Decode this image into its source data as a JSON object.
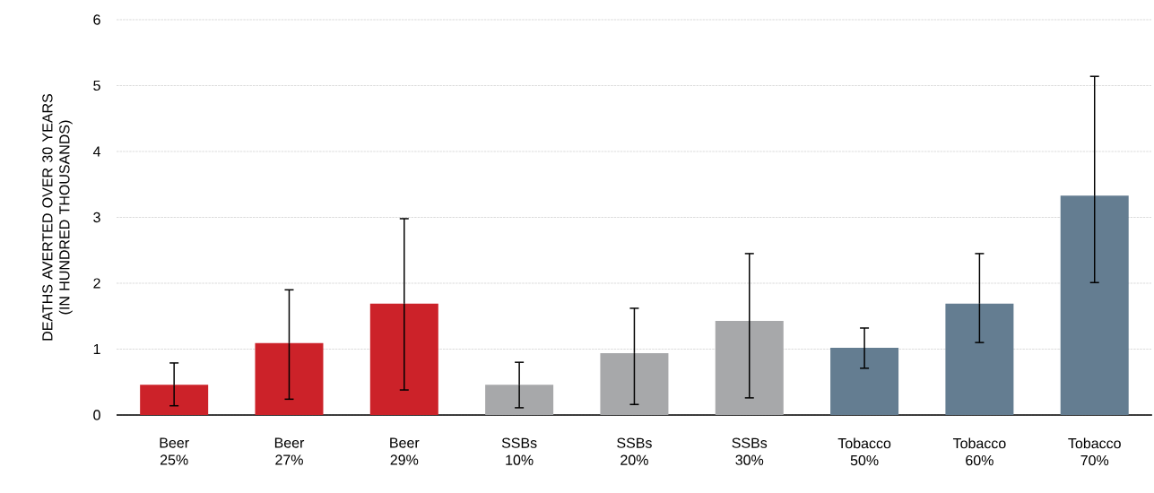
{
  "chart_data": {
    "type": "bar",
    "ylabel": "DEATHS AVERTED OVER 30 YEARS (IN HUNDRED THOUSANDS)",
    "categories": [
      "Beer 25%",
      "Beer 27%",
      "Beer 29%",
      "SSBs 10%",
      "SSBs 20%",
      "SSBs 30%",
      "Tobacco 50%",
      "Tobacco 60%",
      "Tobacco 70%"
    ],
    "values": [
      0.46,
      1.09,
      1.69,
      0.46,
      0.94,
      1.43,
      1.02,
      1.69,
      3.33
    ],
    "errors": [
      [
        0.14,
        0.79
      ],
      [
        0.24,
        1.9
      ],
      [
        0.38,
        2.98
      ],
      [
        0.11,
        0.8
      ],
      [
        0.16,
        1.62
      ],
      [
        0.26,
        2.45
      ],
      [
        0.71,
        1.32
      ],
      [
        1.1,
        2.45
      ],
      [
        2.01,
        5.14
      ]
    ],
    "colors": [
      "#cc2229",
      "#cc2229",
      "#cc2229",
      "#a7a8aa",
      "#a7a8aa",
      "#a7a8aa",
      "#647d91",
      "#647d91",
      "#647d91"
    ],
    "ylim": [
      0,
      6
    ],
    "yticks": [
      0,
      1,
      2,
      3,
      4,
      5,
      6
    ],
    "grid": "y"
  }
}
